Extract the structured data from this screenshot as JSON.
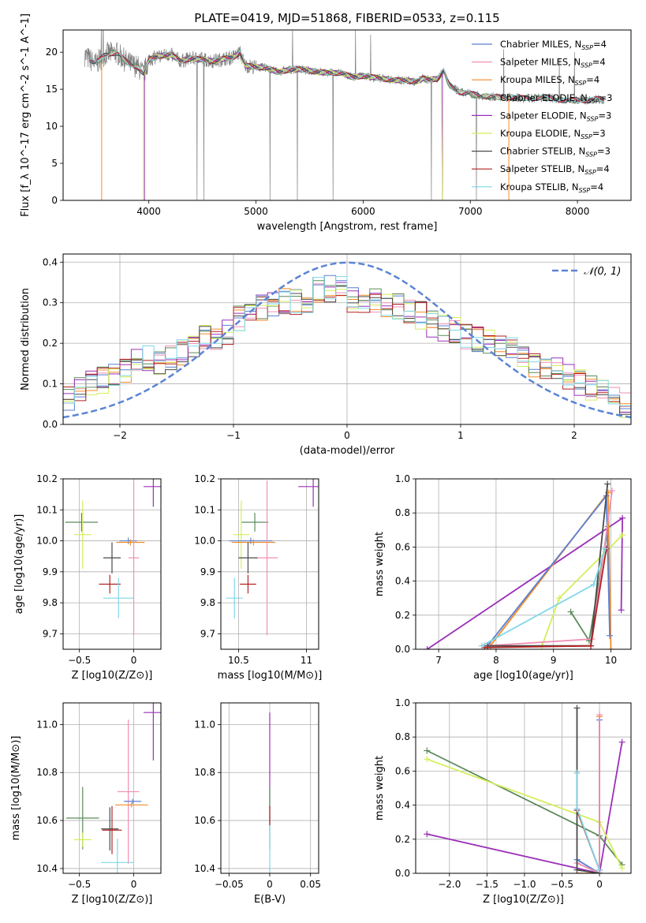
{
  "title": "PLATE=0419, MJD=51868, FIBERID=0533, z=0.115",
  "colors": {
    "chabrier_miles": "#5b7fd1",
    "salpeter_miles": "#f08fb4",
    "kroupa_miles": "#f28c28",
    "chabrier_elodie": "#5c8a5c",
    "salpeter_elodie": "#9b30b8",
    "kroupa_elodie": "#d4ee5a",
    "chabrier_stelib": "#4a4a4a",
    "salpeter_stelib": "#b22222",
    "kroupa_stelib": "#7fd7e8",
    "data_gray": "#808080",
    "normal_curve": "#5b84d6"
  },
  "chart_data": [
    {
      "id": "spectrum",
      "type": "line",
      "xlabel": "wavelength [Angstrom, rest frame]",
      "ylabel": "Flux [f_λ 10^-17 erg cm^-2 s^-1 A^-1]",
      "xlim": [
        3200,
        8500
      ],
      "ylim": [
        0,
        23
      ],
      "xticks": [
        4000,
        5000,
        6000,
        7000,
        8000
      ],
      "yticks": [
        0,
        5,
        10,
        15,
        20
      ],
      "grid": false,
      "legend_position": "top-right",
      "legend": [
        {
          "label": "Chabrier MILES, N",
          "sub": "SSP",
          "suffix": "=4",
          "color_key": "chabrier_miles"
        },
        {
          "label": "Salpeter MILES, N",
          "sub": "SSP",
          "suffix": "=4",
          "color_key": "salpeter_miles"
        },
        {
          "label": "Kroupa MILES, N",
          "sub": "SSP",
          "suffix": "=4",
          "color_key": "kroupa_miles"
        },
        {
          "label": "Chabrier ELODIE, N",
          "sub": "SSP",
          "suffix": "=3",
          "color_key": "chabrier_elodie"
        },
        {
          "label": "Salpeter ELODIE, N",
          "sub": "SSP",
          "suffix": "=3",
          "color_key": "salpeter_elodie"
        },
        {
          "label": "Kroupa ELODIE, N",
          "sub": "SSP",
          "suffix": "=3",
          "color_key": "kroupa_elodie"
        },
        {
          "label": "Chabrier STELIB, N",
          "sub": "SSP",
          "suffix": "=3",
          "color_key": "chabrier_stelib"
        },
        {
          "label": "Salpeter STELIB, N",
          "sub": "SSP",
          "suffix": "=4",
          "color_key": "salpeter_stelib"
        },
        {
          "label": "Kroupa STELIB, N",
          "sub": "SSP",
          "suffix": "=4",
          "color_key": "kroupa_stelib"
        }
      ],
      "continuum": [
        [
          3400,
          19.6
        ],
        [
          3500,
          18.4
        ],
        [
          3600,
          19.8
        ],
        [
          3700,
          19.9
        ],
        [
          3800,
          18.6
        ],
        [
          3900,
          18.0
        ],
        [
          3950,
          17.0
        ],
        [
          4000,
          19.0
        ],
        [
          4100,
          19.5
        ],
        [
          4200,
          19.7
        ],
        [
          4300,
          18.8
        ],
        [
          4400,
          19.2
        ],
        [
          4500,
          19.0
        ],
        [
          4600,
          18.8
        ],
        [
          4700,
          19.1
        ],
        [
          4800,
          19.4
        ],
        [
          4850,
          20.0
        ],
        [
          4900,
          18.2
        ],
        [
          5000,
          18.0
        ],
        [
          5100,
          17.9
        ],
        [
          5200,
          17.3
        ],
        [
          5300,
          17.6
        ],
        [
          5400,
          17.7
        ],
        [
          5500,
          17.5
        ],
        [
          5600,
          17.3
        ],
        [
          5700,
          17.2
        ],
        [
          5800,
          17.2
        ],
        [
          5900,
          16.6
        ],
        [
          6000,
          16.8
        ],
        [
          6100,
          16.6
        ],
        [
          6200,
          16.4
        ],
        [
          6300,
          16.2
        ],
        [
          6400,
          16.2
        ],
        [
          6500,
          16.0
        ],
        [
          6560,
          16.5
        ],
        [
          6600,
          16.3
        ],
        [
          6700,
          16.4
        ],
        [
          6750,
          17.5
        ],
        [
          6800,
          15.6
        ],
        [
          6900,
          14.6
        ],
        [
          7000,
          14.4
        ],
        [
          7100,
          14.1
        ],
        [
          7200,
          14.0
        ],
        [
          7300,
          13.9
        ],
        [
          7400,
          13.9
        ],
        [
          7500,
          13.8
        ],
        [
          7600,
          13.8
        ],
        [
          7700,
          13.9
        ],
        [
          7800,
          13.7
        ],
        [
          7900,
          13.4
        ],
        [
          8000,
          13.6
        ],
        [
          8100,
          13.5
        ],
        [
          8200,
          13.7
        ],
        [
          8250,
          13.6
        ]
      ],
      "dropouts": [
        {
          "color_key": "kroupa_miles",
          "x": [
            3560,
            7360
          ]
        },
        {
          "color_key": "kroupa_elodie",
          "x": [
            3950,
            6740
          ]
        },
        {
          "color_key": "salpeter_elodie",
          "x": [
            3960,
            6740
          ]
        }
      ]
    },
    {
      "id": "residuals",
      "type": "histogram",
      "xlabel": "(data-model)/error",
      "ylabel": "Normed distribution",
      "xlim": [
        -2.5,
        2.5
      ],
      "ylim": [
        0,
        0.42
      ],
      "xticks": [
        -2,
        -1,
        0,
        1,
        2
      ],
      "yticks": [
        0.0,
        0.1,
        0.2,
        0.3,
        0.4
      ],
      "grid": true,
      "legend_position": "top-right",
      "normal_label": "𝒩(0, 1)",
      "bin_edges_start": -2.5,
      "bin_width": 0.1,
      "base_values": [
        0.07,
        0.085,
        0.1,
        0.11,
        0.12,
        0.13,
        0.15,
        0.16,
        0.155,
        0.16,
        0.18,
        0.2,
        0.215,
        0.22,
        0.225,
        0.26,
        0.27,
        0.285,
        0.29,
        0.3,
        0.305,
        0.31,
        0.33,
        0.335,
        0.34,
        0.31,
        0.305,
        0.3,
        0.295,
        0.29,
        0.28,
        0.27,
        0.25,
        0.24,
        0.23,
        0.22,
        0.21,
        0.2,
        0.19,
        0.18,
        0.16,
        0.15,
        0.14,
        0.13,
        0.12,
        0.1,
        0.09,
        0.08,
        0.06,
        0.05
      ]
    },
    {
      "id": "age-vs-Z",
      "type": "errorbar",
      "xlabel": "Z [log10(Z/Z⊙)]",
      "ylabel": "age [log10(age/yr)]",
      "xlim": [
        -0.65,
        0.25
      ],
      "ylim": [
        9.65,
        10.2
      ],
      "xticks": [
        -0.5,
        0.0
      ],
      "yticks": [
        9.7,
        9.8,
        9.9,
        10.0,
        10.1,
        10.2
      ],
      "grid": true,
      "points": [
        {
          "color_key": "salpeter_elodie",
          "x": 0.18,
          "xerr": 0.09,
          "y": 10.175,
          "yerr": 0.065
        },
        {
          "color_key": "chabrier_elodie",
          "x": -0.48,
          "xerr": 0.15,
          "y": 10.06,
          "yerr": 0.03
        },
        {
          "color_key": "kroupa_elodie",
          "x": -0.47,
          "xerr": 0.08,
          "y": 10.02,
          "yerr": 0.11
        },
        {
          "color_key": "chabrier_miles",
          "x": -0.05,
          "xerr": 0.08,
          "y": 10.0,
          "yerr": 0.01
        },
        {
          "color_key": "kroupa_miles",
          "x": -0.03,
          "xerr": 0.13,
          "y": 9.995,
          "yerr": 0.01
        },
        {
          "color_key": "salpeter_miles",
          "x": 0.0,
          "xerr": 0.05,
          "y": 9.945,
          "yerr": 0.25
        },
        {
          "color_key": "chabrier_stelib",
          "x": -0.2,
          "xerr": 0.08,
          "y": 9.945,
          "yerr": 0.05
        },
        {
          "color_key": "salpeter_stelib",
          "x": -0.22,
          "xerr": 0.1,
          "y": 9.86,
          "yerr": 0.03
        },
        {
          "color_key": "kroupa_stelib",
          "x": -0.14,
          "xerr": 0.14,
          "y": 9.815,
          "yerr": 0.065
        }
      ]
    },
    {
      "id": "age-vs-mass",
      "type": "errorbar",
      "xlabel": "mass [log10(M/M⊙)]",
      "ylabel": "",
      "xlim": [
        10.37,
        11.09
      ],
      "ylim": [
        9.65,
        10.2
      ],
      "xticks": [
        10.5,
        11.0
      ],
      "yticks": [
        9.7,
        9.8,
        9.9,
        10.0,
        10.1,
        10.2
      ],
      "grid": true,
      "points": [
        {
          "color_key": "salpeter_elodie",
          "x": 11.05,
          "xerr": 0.11,
          "y": 10.175,
          "yerr": 0.065
        },
        {
          "color_key": "chabrier_elodie",
          "x": 10.62,
          "xerr": 0.1,
          "y": 10.06,
          "yerr": 0.03
        },
        {
          "color_key": "kroupa_elodie",
          "x": 10.52,
          "xerr": 0.06,
          "y": 10.02,
          "yerr": 0.11
        },
        {
          "color_key": "chabrier_miles",
          "x": 10.59,
          "xerr": 0.16,
          "y": 10.0,
          "yerr": 0.01
        },
        {
          "color_key": "kroupa_miles",
          "x": 10.61,
          "xerr": 0.16,
          "y": 9.995,
          "yerr": 0.01
        },
        {
          "color_key": "salpeter_miles",
          "x": 10.71,
          "xerr": 0.08,
          "y": 9.945,
          "yerr": 0.25
        },
        {
          "color_key": "chabrier_stelib",
          "x": 10.57,
          "xerr": 0.07,
          "y": 9.945,
          "yerr": 0.05
        },
        {
          "color_key": "salpeter_stelib",
          "x": 10.57,
          "xerr": 0.06,
          "y": 9.86,
          "yerr": 0.03
        },
        {
          "color_key": "kroupa_stelib",
          "x": 10.47,
          "xerr": 0.06,
          "y": 9.815,
          "yerr": 0.065
        }
      ]
    },
    {
      "id": "weight-vs-age",
      "type": "line",
      "xlabel": "age [log10(age/yr)]",
      "ylabel": "mass weight",
      "xlim": [
        6.6,
        10.35
      ],
      "ylim": [
        0,
        1.0
      ],
      "xticks": [
        7,
        8,
        9,
        10
      ],
      "yticks": [
        0.0,
        0.2,
        0.4,
        0.6,
        0.8,
        1.0
      ],
      "grid": true,
      "series": [
        {
          "color_key": "salpeter_elodie",
          "x": [
            6.8,
            10.2,
            10.18
          ],
          "y": [
            0.0,
            0.77,
            0.23
          ]
        },
        {
          "color_key": "chabrier_elodie",
          "x": [
            9.3,
            9.62,
            9.95
          ],
          "y": [
            0.22,
            0.05,
            0.72
          ]
        },
        {
          "color_key": "kroupa_elodie",
          "x": [
            8.8,
            9.1,
            10.2
          ],
          "y": [
            0.02,
            0.3,
            0.67
          ]
        },
        {
          "color_key": "kroupa_miles",
          "x": [
            7.9,
            9.95,
            10.0
          ],
          "y": [
            0.02,
            0.92,
            0.0
          ]
        },
        {
          "color_key": "chabrier_miles",
          "x": [
            7.85,
            9.92,
            9.98
          ],
          "y": [
            0.02,
            0.9,
            0.08
          ]
        },
        {
          "color_key": "salpeter_miles",
          "x": [
            7.8,
            9.67,
            10.02
          ],
          "y": [
            0.02,
            0.06,
            0.93
          ]
        },
        {
          "color_key": "chabrier_stelib",
          "x": [
            7.85,
            9.65,
            9.94
          ],
          "y": [
            0.02,
            0.02,
            0.97
          ]
        },
        {
          "color_key": "salpeter_stelib",
          "x": [
            7.8,
            9.65,
            9.92
          ],
          "y": [
            0.01,
            0.02,
            0.59
          ]
        },
        {
          "color_key": "kroupa_stelib",
          "x": [
            7.75,
            9.7,
            9.9
          ],
          "y": [
            0.02,
            0.38,
            0.59
          ]
        }
      ]
    },
    {
      "id": "mass-vs-Z",
      "type": "errorbar",
      "xlabel": "Z [log10(Z/Z⊙)]",
      "ylabel": "mass [log10(M/M⊙)]",
      "xlim": [
        -0.65,
        0.25
      ],
      "ylim": [
        10.38,
        11.09
      ],
      "xticks": [
        -0.5,
        0.0
      ],
      "yticks": [
        10.4,
        10.6,
        10.8,
        11.0
      ],
      "grid": true,
      "points": [
        {
          "color_key": "salpeter_elodie",
          "x": 0.18,
          "xerr": 0.09,
          "y": 11.05,
          "yerr": 0.2
        },
        {
          "color_key": "chabrier_elodie",
          "x": -0.47,
          "xerr": 0.15,
          "y": 10.61,
          "yerr": 0.13
        },
        {
          "color_key": "kroupa_elodie",
          "x": -0.47,
          "xerr": 0.08,
          "y": 10.52,
          "yerr": 0.03
        },
        {
          "color_key": "salpeter_miles",
          "x": -0.05,
          "xerr": 0.1,
          "y": 10.72,
          "yerr": 0.3
        },
        {
          "color_key": "chabrier_miles",
          "x": -0.01,
          "xerr": 0.08,
          "y": 10.68,
          "yerr": 0.01
        },
        {
          "color_key": "kroupa_miles",
          "x": -0.02,
          "xerr": 0.15,
          "y": 10.665,
          "yerr": 0.01
        },
        {
          "color_key": "chabrier_stelib",
          "x": -0.22,
          "xerr": 0.08,
          "y": 10.565,
          "yerr": 0.09
        },
        {
          "color_key": "salpeter_stelib",
          "x": -0.2,
          "xerr": 0.09,
          "y": 10.56,
          "yerr": 0.1
        },
        {
          "color_key": "kroupa_stelib",
          "x": -0.15,
          "xerr": 0.15,
          "y": 10.425,
          "yerr": 0.1
        }
      ]
    },
    {
      "id": "mass-vs-ebv",
      "type": "errorbar",
      "xlabel": "E(B-V)",
      "ylabel": "",
      "xlim": [
        -0.06,
        0.06
      ],
      "ylim": [
        10.38,
        11.09
      ],
      "xticks": [
        -0.05,
        0.0,
        0.05
      ],
      "yticks": [
        10.4,
        10.6,
        10.8,
        11.0
      ],
      "grid": true,
      "points": [
        {
          "color_key": "salpeter_elodie",
          "x": 0.0,
          "xerr": 0.0,
          "y": 10.85,
          "yerr": 0.2
        },
        {
          "color_key": "chabrier_elodie",
          "x": 0.0,
          "xerr": 0.0,
          "y": 10.61,
          "yerr": 0.13
        },
        {
          "color_key": "kroupa_stelib",
          "x": 0.0,
          "xerr": 0.0,
          "y": 10.5,
          "yerr": 0.12
        },
        {
          "color_key": "salpeter_stelib",
          "x": 0.0,
          "xerr": 0.0,
          "y": 10.62,
          "yerr": 0.04
        }
      ]
    },
    {
      "id": "weight-vs-Z",
      "type": "line",
      "xlabel": "Z [log10(Z/Z⊙)]",
      "ylabel": "mass weight",
      "xlim": [
        -2.45,
        0.42
      ],
      "ylim": [
        0,
        1.0
      ],
      "xticks": [
        -2.0,
        -1.5,
        -1.0,
        -0.5,
        0.0
      ],
      "yticks": [
        0.0,
        0.2,
        0.4,
        0.6,
        0.8,
        1.0
      ],
      "grid": true,
      "series": [
        {
          "color_key": "salpeter_elodie",
          "x": [
            -2.3,
            0.0,
            0.3
          ],
          "y": [
            0.23,
            0.0,
            0.77
          ]
        },
        {
          "color_key": "chabrier_elodie",
          "x": [
            -2.3,
            0.0,
            0.3
          ],
          "y": [
            0.72,
            0.22,
            0.05
          ]
        },
        {
          "color_key": "kroupa_elodie",
          "x": [
            -2.3,
            0.0,
            0.3
          ],
          "y": [
            0.67,
            0.3,
            0.03
          ]
        },
        {
          "color_key": "kroupa_miles",
          "x": [
            -0.3,
            0.0,
            0.0
          ],
          "y": [
            0.0,
            0.0,
            0.92
          ]
        },
        {
          "color_key": "chabrier_miles",
          "x": [
            -0.3,
            0.0,
            0.0
          ],
          "y": [
            0.08,
            0.0,
            0.9
          ]
        },
        {
          "color_key": "salpeter_miles",
          "x": [
            -0.3,
            0.0,
            0.0
          ],
          "y": [
            0.06,
            0.0,
            0.93
          ]
        },
        {
          "color_key": "chabrier_stelib",
          "x": [
            -0.3,
            -0.3,
            0.0
          ],
          "y": [
            0.97,
            0.02,
            0.0
          ]
        },
        {
          "color_key": "salpeter_stelib",
          "x": [
            -0.3,
            -0.3,
            0.0
          ],
          "y": [
            0.59,
            0.37,
            0.02
          ]
        },
        {
          "color_key": "kroupa_stelib",
          "x": [
            -0.3,
            -0.3,
            0.0
          ],
          "y": [
            0.59,
            0.38,
            0.02
          ]
        }
      ]
    }
  ]
}
